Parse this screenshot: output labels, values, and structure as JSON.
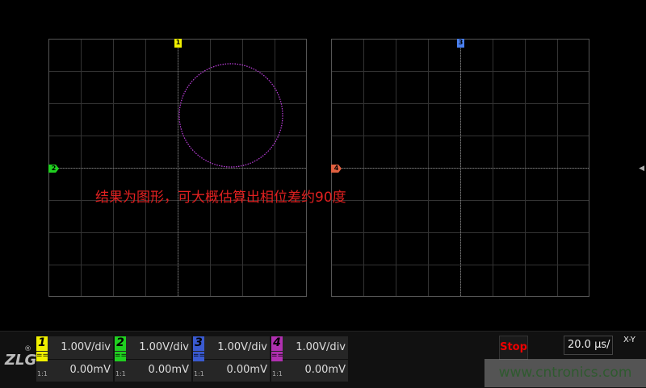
{
  "annotation": "结果为图形，可大概估算出相位差约90度",
  "markers": {
    "ch1": "1",
    "ch2": "2",
    "ch3": "3",
    "ch4": "4"
  },
  "colors": {
    "ch1": "#f0f000",
    "ch2": "#20d020",
    "ch3": "#3a5ad0",
    "ch4": "#b030b0",
    "ch4_marker": "#e06040",
    "trace": "#c040e0"
  },
  "logo": "ZLG",
  "logo_reg": "®",
  "channels": [
    {
      "num": "1",
      "scale": "1.00V/div",
      "offset": "0.00mV",
      "probe": "1:1",
      "coupling": "=="
    },
    {
      "num": "2",
      "scale": "1.00V/div",
      "offset": "0.00mV",
      "probe": "1:1",
      "coupling": "=="
    },
    {
      "num": "3",
      "scale": "1.00V/div",
      "offset": "0.00mV",
      "probe": "1:1",
      "coupling": "=="
    },
    {
      "num": "4",
      "scale": "1.00V/div",
      "offset": "0.00mV",
      "probe": "1:1",
      "coupling": "=="
    }
  ],
  "run_state": "Stop",
  "timebase": "20.0 μs/",
  "mode": "X-Y",
  "watermark": "www.cntronics.com"
}
